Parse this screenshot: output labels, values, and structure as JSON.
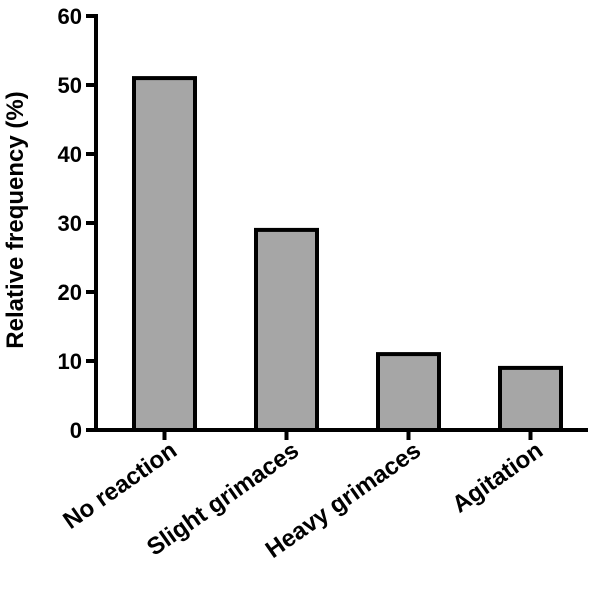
{
  "chart_data": {
    "type": "bar",
    "title": "",
    "xlabel": "",
    "ylabel": "Relative frequency (%)",
    "categories": [
      "No reaction",
      "Slight grimaces",
      "Heavy grimaces",
      "Agitation"
    ],
    "values": [
      51,
      29,
      11,
      9
    ],
    "ylim": [
      0,
      60
    ],
    "yticks": [
      "0",
      "10",
      "20",
      "30",
      "40",
      "50",
      "60"
    ],
    "grid": false,
    "legend": "none",
    "colors": {
      "bar_fill": "#a6a6a6",
      "bar_stroke": "#000000",
      "axis": "#000000"
    }
  }
}
